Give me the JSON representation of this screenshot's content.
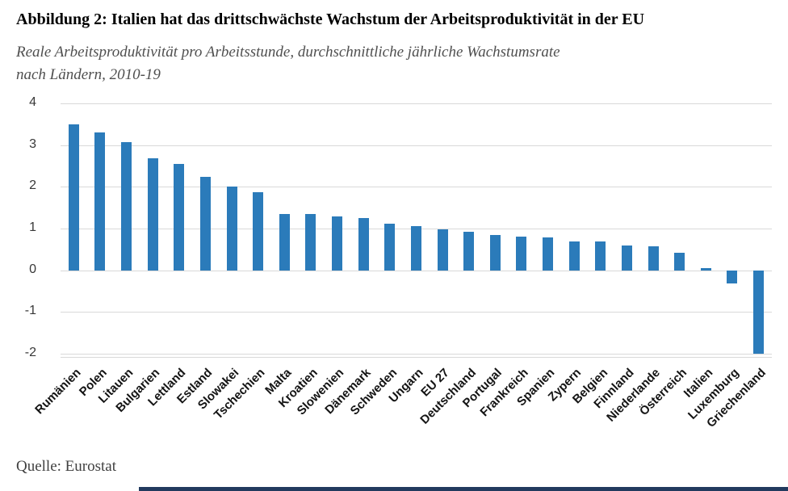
{
  "page": {
    "title": "Abbildung 2: Italien hat das drittschwächste Wachstum der Arbeitsproduktivität in der EU",
    "subtitle_line1": "Reale Arbeitsproduktivität pro Arbeitsstunde, durchschnittliche jährliche Wachstumsrate",
    "subtitle_line2": "nach Ländern, 2010-19",
    "source": "Quelle: Eurostat"
  },
  "chart_data": {
    "type": "bar",
    "title": "Abbildung 2: Italien hat das drittschwächste Wachstum der Arbeitsproduktivität in der EU",
    "subtitle": "Reale Arbeitsproduktivität pro Arbeitsstunde, durchschnittliche jährliche Wachstumsrate nach Ländern, 2010-19",
    "source": "Quelle: Eurostat",
    "categories": [
      "Rumänien",
      "Polen",
      "Litauen",
      "Bulgarien",
      "Lettland",
      "Estland",
      "Slowakei",
      "Tschechien",
      "Malta",
      "Kroatien",
      "Slowenien",
      "Dänemark",
      "Schweden",
      "Ungarn",
      "EU 27",
      "Deutschland",
      "Portugal",
      "Frankreich",
      "Spanien",
      "Zypern",
      "Belgien",
      "Finnland",
      "Niederlande",
      "Österreich",
      "Italien",
      "Luxemburg",
      "Griechenland"
    ],
    "values": [
      3.5,
      3.3,
      3.08,
      2.68,
      2.55,
      2.25,
      2.0,
      1.88,
      1.35,
      1.35,
      1.3,
      1.26,
      1.12,
      1.06,
      0.98,
      0.92,
      0.84,
      0.8,
      0.78,
      0.7,
      0.69,
      0.6,
      0.58,
      0.42,
      0.05,
      -0.32,
      -2.0
    ],
    "xlabel": "",
    "ylabel": "",
    "y_ticks": [
      4,
      3,
      2,
      1,
      0,
      -1,
      -2
    ],
    "ylim": [
      -2.1,
      4.1
    ],
    "grid": true,
    "legend_position": "none",
    "bar_color": "#2b7bba",
    "grid_color": "#d9d9d9",
    "footer_rule_color": "#223a5e"
  }
}
